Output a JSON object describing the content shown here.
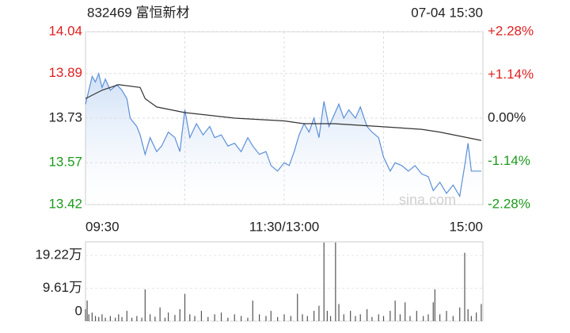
{
  "chart_data": [
    {
      "type": "line",
      "title": "832469 富恒新材",
      "subtitle": "07-04 15:30",
      "watermark": "sina.com",
      "xlim": [
        0,
        240
      ],
      "xticks": [
        {
          "value": 0,
          "label": "09:30"
        },
        {
          "value": 120,
          "label": "11:30/13:00"
        },
        {
          "value": 240,
          "label": "15:00"
        }
      ],
      "ylim": [
        13.42,
        14.04
      ],
      "yticks": [
        14.04,
        13.89,
        13.73,
        13.57,
        13.42
      ],
      "y2lim": [
        -2.28,
        2.28
      ],
      "y2ticks": [
        {
          "value": 2.28,
          "label": "+2.28%"
        },
        {
          "value": 1.14,
          "label": "+1.14%"
        },
        {
          "value": 0,
          "label": "0.00%"
        },
        {
          "value": -1.14,
          "label": "-1.14%"
        },
        {
          "value": -2.28,
          "label": "-2.28%"
        }
      ],
      "up_color": "#e02020",
      "down_color": "#1a9a1a",
      "flat_color": "#222222",
      "grid": true,
      "series": [
        {
          "name": "price",
          "color": "#5b8fd8",
          "x": [
            0,
            2,
            4,
            6,
            8,
            10,
            12,
            15,
            19,
            22,
            25,
            27,
            31,
            33,
            36,
            39,
            43,
            46,
            50,
            54,
            57,
            60,
            63,
            67,
            71,
            75,
            78,
            82,
            86,
            90,
            94,
            98,
            101,
            105,
            109,
            112,
            116,
            120,
            123,
            126,
            129,
            132,
            135,
            138,
            141,
            144,
            147,
            150,
            153,
            156,
            159,
            163,
            166,
            170,
            173,
            177,
            180,
            184,
            187,
            191,
            195,
            199,
            203,
            207,
            210,
            214,
            218,
            222,
            226,
            229,
            231,
            233,
            236,
            239
          ],
          "values": [
            13.78,
            13.83,
            13.88,
            13.86,
            13.89,
            13.84,
            13.87,
            13.83,
            13.85,
            13.83,
            13.8,
            13.73,
            13.7,
            13.67,
            13.6,
            13.66,
            13.61,
            13.63,
            13.68,
            13.66,
            13.61,
            13.76,
            13.66,
            13.71,
            13.67,
            13.7,
            13.66,
            13.67,
            13.63,
            13.64,
            13.61,
            13.66,
            13.63,
            13.6,
            13.61,
            13.56,
            13.54,
            13.57,
            13.56,
            13.61,
            13.67,
            13.71,
            13.68,
            13.73,
            13.66,
            13.79,
            13.7,
            13.74,
            13.78,
            13.73,
            13.76,
            13.73,
            13.77,
            13.7,
            13.68,
            13.66,
            13.59,
            13.54,
            13.57,
            13.56,
            13.54,
            13.56,
            13.53,
            13.52,
            13.47,
            13.5,
            13.46,
            13.49,
            13.45,
            13.56,
            13.64,
            13.54,
            13.54,
            13.54
          ]
        },
        {
          "name": "average",
          "color": "#333333",
          "x": [
            0,
            10,
            20,
            33,
            36,
            43,
            60,
            90,
            120,
            132,
            150,
            177,
            203,
            214,
            239
          ],
          "values": [
            13.8,
            13.83,
            13.85,
            13.84,
            13.8,
            13.77,
            13.75,
            13.73,
            13.72,
            13.71,
            13.71,
            13.7,
            13.69,
            13.68,
            13.65
          ]
        }
      ]
    },
    {
      "type": "bar",
      "color": "#555555",
      "xlim": [
        0,
        240
      ],
      "ylim": [
        0,
        23.2
      ],
      "yticks": [
        {
          "value": 19.22,
          "label": "19.22万"
        },
        {
          "value": 9.61,
          "label": "9.61万"
        },
        0
      ],
      "x": [
        0,
        1,
        2,
        4,
        6,
        8,
        10,
        12,
        15,
        18,
        20,
        22,
        25,
        28,
        31,
        34,
        36,
        39,
        42,
        45,
        48,
        50,
        54,
        57,
        60,
        63,
        66,
        70,
        74,
        78,
        82,
        86,
        90,
        94,
        98,
        101,
        105,
        109,
        112,
        116,
        120,
        124,
        128,
        131,
        134,
        138,
        141,
        144,
        146,
        148,
        151,
        153,
        156,
        160,
        163,
        166,
        170,
        173,
        177,
        180,
        184,
        187,
        190,
        193,
        196,
        200,
        204,
        207,
        210,
        211,
        214,
        218,
        222,
        226,
        229,
        231,
        233,
        236,
        239
      ],
      "values": [
        3.5,
        6,
        2,
        2.5,
        1.5,
        1.2,
        2,
        1,
        1.5,
        1,
        2,
        1.2,
        3,
        1,
        1.5,
        1,
        9.3,
        2,
        1.3,
        4,
        1,
        2.5,
        1.8,
        3.5,
        8,
        2,
        1.5,
        3,
        1.2,
        2,
        2.5,
        1,
        2,
        1.5,
        1,
        6,
        2,
        1.5,
        3,
        1.2,
        2,
        1.5,
        8,
        2,
        1.5,
        3,
        4.5,
        23,
        3,
        1.5,
        23,
        5,
        2,
        3,
        1.5,
        2,
        3.5,
        1.2,
        2,
        1.5,
        3,
        6,
        2,
        5.5,
        1.5,
        3,
        1.5,
        2,
        5.5,
        9.3,
        2,
        3,
        1.5,
        4,
        20,
        3.5,
        1.5,
        2.5,
        5
      ]
    }
  ]
}
